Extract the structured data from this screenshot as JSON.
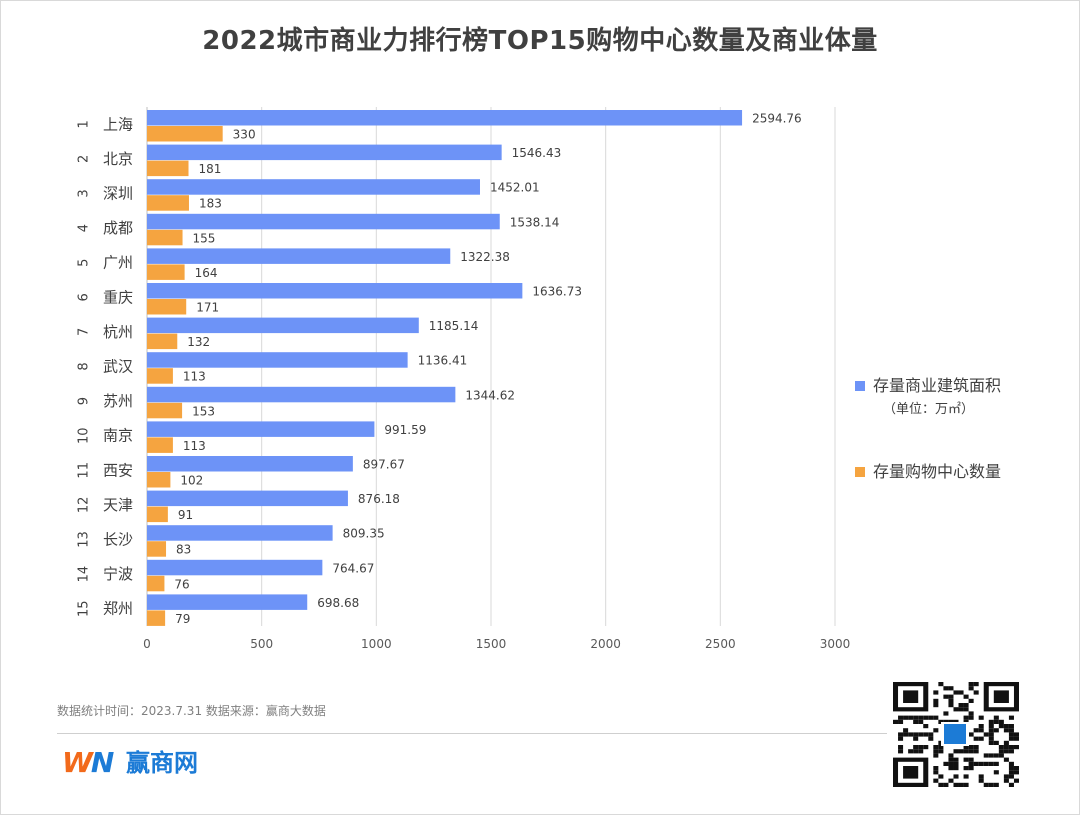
{
  "title": "2022城市商业力排行榜TOP15购物中心数量及商业体量",
  "chart_data": {
    "type": "bar",
    "orientation": "horizontal",
    "ranks": [
      "1",
      "2",
      "3",
      "4",
      "5",
      "6",
      "7",
      "8",
      "9",
      "10",
      "11",
      "12",
      "13",
      "14",
      "15"
    ],
    "categories": [
      "上海",
      "北京",
      "深圳",
      "成都",
      "广州",
      "重庆",
      "杭州",
      "武汉",
      "苏州",
      "南京",
      "西安",
      "天津",
      "长沙",
      "宁波",
      "郑州"
    ],
    "series": [
      {
        "name": "存量商业建筑面积",
        "unit": "（单位：万㎡）",
        "color": "#6d93f7",
        "values": [
          2594.76,
          1546.43,
          1452.01,
          1538.14,
          1322.38,
          1636.73,
          1185.14,
          1136.41,
          1344.62,
          991.59,
          897.67,
          876.18,
          809.35,
          764.67,
          698.68
        ],
        "labels": [
          "2594.76",
          "1546.43",
          "1452.01",
          "1538.14",
          "1322.38",
          "1636.73",
          "1185.14",
          "1136.41",
          "1344.62",
          "991.59",
          "897.67",
          "876.18",
          "809.35",
          "764.67",
          "698.68"
        ]
      },
      {
        "name": "存量购物中心数量",
        "color": "#f5a440",
        "values": [
          330,
          181,
          183,
          155,
          164,
          171,
          132,
          113,
          153,
          113,
          102,
          91,
          83,
          76,
          79
        ],
        "labels": [
          "330",
          "181",
          "183",
          "155",
          "164",
          "171",
          "132",
          "113",
          "153",
          "113",
          "102",
          "91",
          "83",
          "76",
          "79"
        ]
      }
    ],
    "xlim": [
      0,
      3000
    ],
    "xticks": [
      "0",
      "500",
      "1000",
      "1500",
      "2000",
      "2500",
      "3000"
    ],
    "grid": true,
    "legend_position": "right"
  },
  "legend": {
    "area_label": "存量商业建筑面积",
    "area_unit": "（单位：万㎡）",
    "count_label": "存量购物中心数量"
  },
  "footnote": "数据统计时间：2023.7.31 数据来源：赢商大数据",
  "logo": {
    "mark_w": "W",
    "mark_n": "N",
    "text": "赢商网"
  }
}
